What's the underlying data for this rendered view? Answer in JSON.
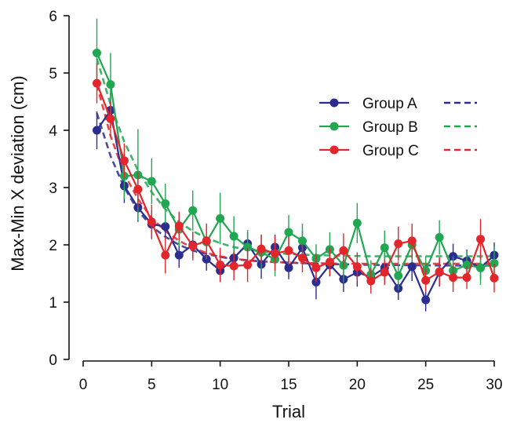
{
  "chart_data": {
    "type": "line",
    "title": "",
    "xlabel": "Trial",
    "ylabel": "Max-Min  X deviation (cm)",
    "xlim": [
      0,
      30
    ],
    "ylim": [
      0,
      6
    ],
    "x_ticks": [
      0,
      5,
      10,
      15,
      20,
      25,
      30
    ],
    "y_ticks": [
      0,
      1,
      2,
      3,
      4,
      5,
      6
    ],
    "x_tick_labels": [
      "0",
      "5",
      "10",
      "15",
      "20",
      "25",
      "30"
    ],
    "y_tick_labels": [
      "0",
      "1",
      "2",
      "3",
      "4",
      "5",
      "6"
    ],
    "grid": false,
    "legend_position": "top-right",
    "x": [
      1,
      2,
      3,
      4,
      5,
      6,
      7,
      8,
      9,
      10,
      11,
      12,
      13,
      14,
      15,
      16,
      17,
      18,
      19,
      20,
      21,
      22,
      23,
      24,
      25,
      26,
      27,
      28,
      29,
      30
    ],
    "series": [
      {
        "name": "Group A",
        "color": "#2b2d8f",
        "values": [
          4.0,
          4.35,
          3.03,
          2.65,
          2.36,
          2.32,
          1.82,
          2.0,
          1.75,
          1.55,
          1.77,
          2.02,
          1.66,
          1.96,
          1.6,
          1.95,
          1.35,
          1.65,
          1.4,
          1.52,
          1.44,
          1.6,
          1.24,
          1.62,
          1.04,
          1.52,
          1.8,
          1.72,
          1.6,
          1.82
        ],
        "errors": [
          0.33,
          0.3,
          0.3,
          0.25,
          0.25,
          0.22,
          0.22,
          0.22,
          0.2,
          0.2,
          0.25,
          0.2,
          0.25,
          0.22,
          0.2,
          0.3,
          0.3,
          0.2,
          0.22,
          0.25,
          0.2,
          0.22,
          0.2,
          0.25,
          0.2,
          0.25,
          0.22,
          0.2,
          0.2,
          0.22
        ],
        "fit": [
          4.3,
          3.55,
          3.0,
          2.6,
          2.32,
          2.14,
          2.0,
          1.9,
          1.84,
          1.79,
          1.75,
          1.73,
          1.71,
          1.7,
          1.69,
          1.68,
          1.67,
          1.665,
          1.66,
          1.655,
          1.65,
          1.648,
          1.646,
          1.644,
          1.642,
          1.64,
          1.64,
          1.64,
          1.64,
          1.64
        ]
      },
      {
        "name": "Group B",
        "color": "#21a651",
        "values": [
          5.35,
          4.8,
          3.2,
          3.22,
          3.11,
          2.72,
          2.27,
          2.6,
          2.05,
          2.46,
          2.15,
          1.96,
          1.87,
          1.75,
          2.22,
          2.07,
          1.76,
          1.92,
          1.64,
          2.38,
          1.48,
          1.95,
          1.46,
          2.0,
          1.55,
          2.13,
          1.55,
          1.65,
          1.6,
          1.68
        ],
        "errors": [
          0.6,
          0.55,
          0.4,
          0.8,
          0.4,
          0.35,
          0.3,
          0.35,
          0.3,
          0.45,
          0.35,
          0.3,
          0.3,
          0.3,
          0.3,
          0.3,
          0.25,
          0.3,
          0.3,
          0.35,
          0.25,
          0.3,
          0.25,
          0.3,
          0.25,
          0.3,
          0.25,
          0.25,
          0.3,
          0.3
        ],
        "fit": [
          5.25,
          4.45,
          3.8,
          3.3,
          2.92,
          2.62,
          2.4,
          2.24,
          2.12,
          2.03,
          1.96,
          1.92,
          1.88,
          1.86,
          1.84,
          1.83,
          1.82,
          1.815,
          1.81,
          1.805,
          1.8,
          1.8,
          1.8,
          1.8,
          1.8,
          1.8,
          1.8,
          1.8,
          1.8,
          1.8
        ]
      },
      {
        "name": "Group C",
        "color": "#e3262b",
        "values": [
          4.82,
          4.2,
          3.47,
          2.97,
          2.4,
          1.82,
          2.33,
          1.98,
          2.07,
          1.65,
          1.63,
          1.65,
          1.93,
          1.85,
          1.9,
          1.77,
          1.6,
          1.7,
          1.9,
          1.62,
          1.37,
          1.52,
          2.02,
          2.07,
          1.38,
          1.53,
          1.43,
          1.43,
          2.1,
          1.42
        ],
        "errors": [
          0.35,
          0.3,
          0.3,
          0.3,
          0.3,
          0.32,
          0.25,
          0.25,
          0.3,
          0.3,
          0.25,
          0.3,
          0.25,
          0.3,
          0.25,
          0.25,
          0.25,
          0.25,
          0.3,
          0.25,
          0.22,
          0.22,
          0.3,
          0.3,
          0.2,
          0.25,
          0.25,
          0.2,
          0.35,
          0.25
        ],
        "fit": [
          4.8,
          3.9,
          3.24,
          2.8,
          2.47,
          2.24,
          2.07,
          1.95,
          1.86,
          1.8,
          1.76,
          1.73,
          1.71,
          1.7,
          1.69,
          1.685,
          1.68,
          1.675,
          1.67,
          1.67,
          1.67,
          1.67,
          1.67,
          1.67,
          1.67,
          1.67,
          1.67,
          1.67,
          1.67,
          1.67
        ]
      }
    ]
  }
}
